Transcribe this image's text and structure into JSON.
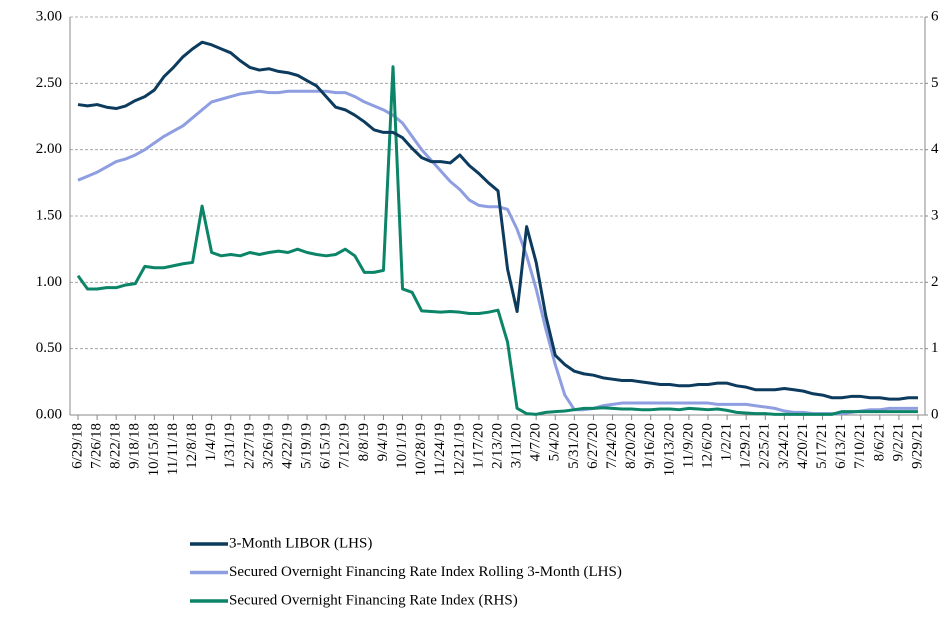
{
  "chart_data": {
    "type": "line",
    "categories": [
      "6/29/18",
      null,
      "7/26/18",
      null,
      "8/22/18",
      null,
      "9/18/18",
      null,
      "10/15/18",
      null,
      "11/11/18",
      null,
      "12/8/18",
      null,
      "1/4/19",
      null,
      "1/31/19",
      null,
      "2/27/19",
      null,
      "3/26/19",
      null,
      "4/22/19",
      null,
      "5/19/19",
      null,
      "6/15/19",
      null,
      "7/12/19",
      null,
      "8/8/19",
      null,
      "9/4/19",
      null,
      "10/1/19",
      null,
      "10/28/19",
      null,
      "11/24/19",
      null,
      "12/21/19",
      null,
      "1/17/20",
      null,
      "2/13/20",
      null,
      "3/11/20",
      null,
      "4/7/20",
      null,
      "5/4/20",
      null,
      "5/31/20",
      null,
      "6/27/20",
      null,
      "7/24/20",
      null,
      "8/20/20",
      null,
      "9/16/20",
      null,
      "10/13/20",
      null,
      "11/9/20",
      null,
      "12/6/20",
      null,
      "1/2/21",
      null,
      "1/29/21",
      null,
      "2/25/21",
      null,
      "3/24/21",
      null,
      "4/20/21",
      null,
      "5/17/21",
      null,
      "6/13/21",
      null,
      "7/10/21",
      null,
      "8/6/21",
      null,
      "9/2/21",
      null,
      "9/29/21"
    ],
    "series": [
      {
        "name": "3-Month LIBOR (LHS)",
        "color": "#0d3b5e",
        "axis": "y",
        "values": [
          2.34,
          2.33,
          2.34,
          2.32,
          2.31,
          2.33,
          2.37,
          2.4,
          2.45,
          2.55,
          2.62,
          2.7,
          2.76,
          2.81,
          2.79,
          2.76,
          2.73,
          2.67,
          2.62,
          2.6,
          2.61,
          2.59,
          2.58,
          2.56,
          2.52,
          2.48,
          2.4,
          2.32,
          2.3,
          2.26,
          2.21,
          2.15,
          2.13,
          2.13,
          2.09,
          2.01,
          1.94,
          1.91,
          1.91,
          1.9,
          1.96,
          1.88,
          1.82,
          1.75,
          1.69,
          1.1,
          0.78,
          1.42,
          1.15,
          0.75,
          0.45,
          0.38,
          0.33,
          0.31,
          0.3,
          0.28,
          0.27,
          0.26,
          0.26,
          0.25,
          0.24,
          0.23,
          0.23,
          0.22,
          0.22,
          0.23,
          0.23,
          0.24,
          0.24,
          0.22,
          0.21,
          0.19,
          0.19,
          0.19,
          0.2,
          0.19,
          0.18,
          0.16,
          0.15,
          0.13,
          0.13,
          0.14,
          0.14,
          0.13,
          0.13,
          0.12,
          0.12,
          0.13,
          0.13
        ]
      },
      {
        "name": "Secured Overnight Financing Rate Index Rolling 3-Month (LHS)",
        "color": "#8e9ee0",
        "axis": "y",
        "values": [
          1.77,
          1.8,
          1.83,
          1.87,
          1.91,
          1.93,
          1.96,
          2.0,
          2.05,
          2.1,
          2.14,
          2.18,
          2.24,
          2.3,
          2.36,
          2.38,
          2.4,
          2.42,
          2.43,
          2.44,
          2.43,
          2.43,
          2.44,
          2.44,
          2.44,
          2.44,
          2.44,
          2.43,
          2.43,
          2.4,
          2.36,
          2.33,
          2.3,
          2.26,
          2.2,
          2.1,
          2.0,
          1.92,
          1.84,
          1.76,
          1.7,
          1.62,
          1.58,
          1.57,
          1.57,
          1.55,
          1.4,
          1.2,
          0.95,
          0.65,
          0.38,
          0.15,
          0.04,
          0.04,
          0.05,
          0.07,
          0.08,
          0.09,
          0.09,
          0.09,
          0.09,
          0.09,
          0.09,
          0.09,
          0.09,
          0.09,
          0.09,
          0.08,
          0.08,
          0.08,
          0.08,
          0.07,
          0.06,
          0.05,
          0.03,
          0.02,
          0.02,
          0.01,
          0.01,
          0.01,
          0.01,
          0.02,
          0.03,
          0.04,
          0.04,
          0.05,
          0.05,
          0.05,
          0.05
        ]
      },
      {
        "name": "Secured Overnight Financing Rate Index (RHS)",
        "color": "#0c8468",
        "axis": "y2",
        "values": [
          2.1,
          1.9,
          1.9,
          1.92,
          1.92,
          1.96,
          1.98,
          2.24,
          2.22,
          2.22,
          2.25,
          2.28,
          2.3,
          3.15,
          2.45,
          2.4,
          2.42,
          2.4,
          2.45,
          2.42,
          2.45,
          2.47,
          2.45,
          2.5,
          2.45,
          2.42,
          2.4,
          2.42,
          2.5,
          2.4,
          2.15,
          2.15,
          2.18,
          5.25,
          1.9,
          1.85,
          1.57,
          1.56,
          1.55,
          1.56,
          1.55,
          1.53,
          1.53,
          1.55,
          1.58,
          1.1,
          0.1,
          0.02,
          0.01,
          0.04,
          0.05,
          0.06,
          0.08,
          0.1,
          0.1,
          0.11,
          0.1,
          0.09,
          0.09,
          0.08,
          0.08,
          0.09,
          0.09,
          0.08,
          0.1,
          0.09,
          0.08,
          0.09,
          0.07,
          0.04,
          0.03,
          0.02,
          0.02,
          0.01,
          0.01,
          0.01,
          0.01,
          0.01,
          0.01,
          0.01,
          0.05,
          0.05,
          0.05,
          0.05,
          0.05,
          0.05,
          0.05,
          0.05,
          0.05
        ]
      }
    ],
    "ylim": [
      0,
      3
    ],
    "yticks": [
      {
        "value": 0,
        "label": "0.00"
      },
      {
        "value": 0.5,
        "label": "0.50"
      },
      {
        "value": 1,
        "label": "1.00"
      },
      {
        "value": 1.5,
        "label": "1.50"
      },
      {
        "value": 2,
        "label": "2.00"
      },
      {
        "value": 2.5,
        "label": "2.50"
      },
      {
        "value": 3,
        "label": "3.00"
      }
    ],
    "y2lim": [
      0,
      6
    ],
    "y2ticks": [
      0,
      1,
      2,
      3,
      4,
      5,
      6
    ],
    "grid": true,
    "legend": "bottom"
  }
}
